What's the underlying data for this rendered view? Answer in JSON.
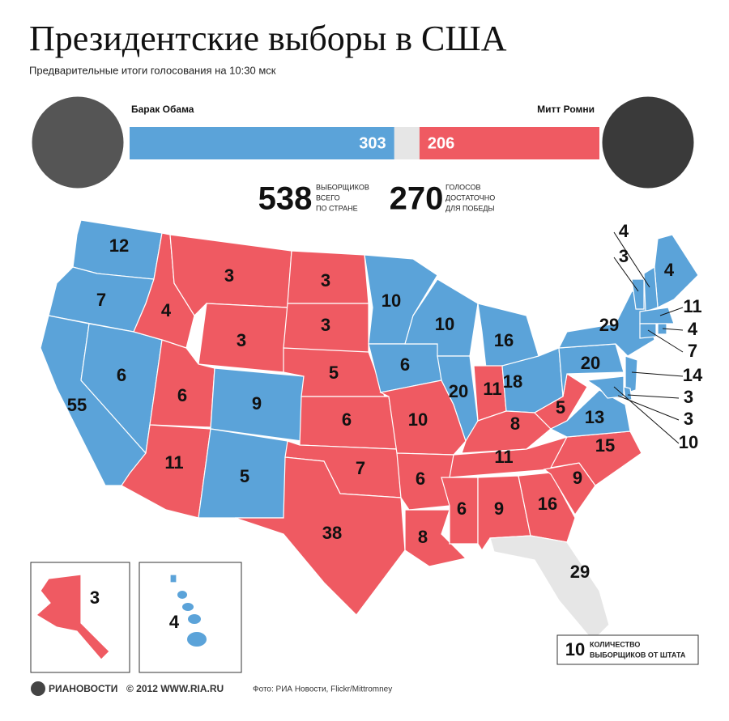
{
  "header": {
    "title": "Президентские выборы в США",
    "subtitle": "Предварительные итоги голосования на 10:30 мск"
  },
  "candidates": [
    {
      "name": "Барак Обама",
      "votes": 303,
      "color": "#5ba3d9"
    },
    {
      "name": "Митт Ромни",
      "votes": 206,
      "color": "#ef5a62"
    }
  ],
  "totals": {
    "total": 538,
    "total_label": [
      "ВЫБОРЩИКОВ",
      "ВСЕГО",
      "ПО СТРАНЕ"
    ],
    "needed": 270,
    "needed_label": [
      "ГОЛОСОВ",
      "ДОСТАТОЧНО",
      "ДЛЯ ПОБЕДЫ"
    ]
  },
  "states": [
    {
      "votes": 12,
      "color": "#5ba3d9"
    },
    {
      "votes": 7,
      "color": "#5ba3d9"
    },
    {
      "votes": 55,
      "color": "#5ba3d9"
    },
    {
      "votes": 6,
      "color": "#5ba3d9"
    },
    {
      "votes": 4,
      "color": "#ef5a62"
    },
    {
      "votes": 3,
      "color": "#ef5a62"
    },
    {
      "votes": 3,
      "color": "#ef5a62"
    },
    {
      "votes": 6,
      "color": "#ef5a62"
    },
    {
      "votes": 9,
      "color": "#5ba3d9"
    },
    {
      "votes": 11,
      "color": "#ef5a62"
    },
    {
      "votes": 5,
      "color": "#5ba3d9"
    },
    {
      "votes": 3,
      "color": "#ef5a62"
    },
    {
      "votes": 3,
      "color": "#ef5a62"
    },
    {
      "votes": 5,
      "color": "#ef5a62"
    },
    {
      "votes": 6,
      "color": "#ef5a62"
    },
    {
      "votes": 7,
      "color": "#ef5a62"
    },
    {
      "votes": 38,
      "color": "#ef5a62"
    },
    {
      "votes": 10,
      "color": "#5ba3d9"
    },
    {
      "votes": 6,
      "color": "#5ba3d9"
    },
    {
      "votes": 10,
      "color": "#ef5a62"
    },
    {
      "votes": 6,
      "color": "#ef5a62"
    },
    {
      "votes": 8,
      "color": "#ef5a62"
    },
    {
      "votes": 10,
      "color": "#5ba3d9"
    },
    {
      "votes": 20,
      "color": "#5ba3d9"
    },
    {
      "votes": 16,
      "color": "#5ba3d9"
    },
    {
      "votes": 11,
      "color": "#ef5a62"
    },
    {
      "votes": 18,
      "color": "#5ba3d9"
    },
    {
      "votes": 8,
      "color": "#ef5a62"
    },
    {
      "votes": 5,
      "color": "#ef5a62"
    },
    {
      "votes": 11,
      "color": "#ef5a62"
    },
    {
      "votes": 6,
      "color": "#ef5a62"
    },
    {
      "votes": 9,
      "color": "#ef5a62"
    },
    {
      "votes": 16,
      "color": "#ef5a62"
    },
    {
      "votes": 9,
      "color": "#ef5a62"
    },
    {
      "votes": 15,
      "color": "#ef5a62"
    },
    {
      "votes": 13,
      "color": "#5ba3d9"
    },
    {
      "votes": 20,
      "color": "#5ba3d9"
    },
    {
      "votes": 29,
      "color": "#5ba3d9"
    },
    {
      "votes": 4,
      "color": "#5ba3d9"
    },
    {
      "votes": 29,
      "color": "#e6e6e6"
    },
    {
      "votes": 3,
      "color": "#5ba3d9"
    },
    {
      "votes": 4,
      "color": "#5ba3d9"
    },
    {
      "votes": 11,
      "color": "#5ba3d9"
    },
    {
      "votes": 4,
      "color": "#5ba3d9"
    },
    {
      "votes": 7,
      "color": "#5ba3d9"
    },
    {
      "votes": 14,
      "color": "#5ba3d9"
    },
    {
      "votes": 3,
      "color": "#5ba3d9"
    },
    {
      "votes": 3,
      "color": "#5ba3d9"
    },
    {
      "votes": 10,
      "color": "#5ba3d9"
    },
    {
      "votes": 3,
      "color": "#ef5a62"
    },
    {
      "votes": 4,
      "color": "#5ba3d9"
    }
  ],
  "legend": {
    "value": 10,
    "label": [
      "КОЛИЧЕСТВО",
      "ВЫБОРЩИКОВ ОТ ШТАТА"
    ]
  },
  "footer": {
    "logo": "РИАНОВОСТИ",
    "copyright": "© 2012 WWW.RIA.RU",
    "credit": "Фото: РИА Новости, Flickr/Mittromney"
  }
}
